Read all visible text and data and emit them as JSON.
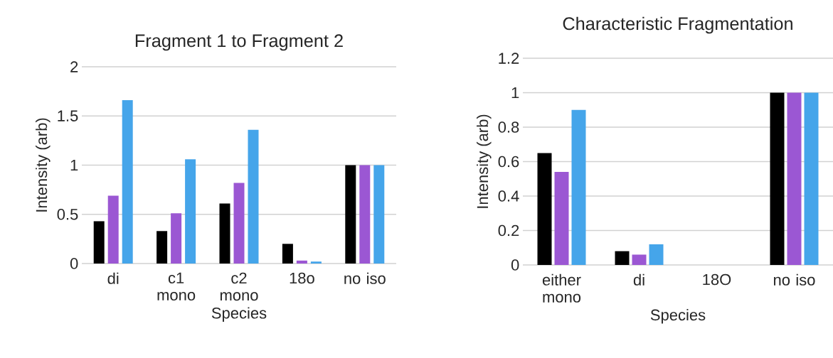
{
  "chart_data": [
    {
      "type": "bar",
      "title": "Fragment 1 to Fragment 2",
      "xlabel": "Species",
      "ylabel": "Intensity (arb)",
      "categories": [
        "di",
        "c1 mono",
        "c2 mono",
        "18o",
        "no iso"
      ],
      "series": [
        {
          "color": "#000000",
          "values": [
            0.43,
            0.33,
            0.61,
            0.2,
            1.0
          ]
        },
        {
          "color": "#9b57d3",
          "values": [
            0.69,
            0.51,
            0.82,
            0.03,
            1.0
          ]
        },
        {
          "color": "#45a5ea",
          "values": [
            1.66,
            1.06,
            1.36,
            0.02,
            1.0
          ]
        }
      ],
      "ylim": [
        0,
        2
      ],
      "yticks": [
        0,
        0.5,
        1,
        1.5,
        2
      ],
      "grid": "y"
    },
    {
      "type": "bar",
      "title": "Characteristic Fragmentation",
      "xlabel": "Species",
      "ylabel": "Intensity (arb)",
      "categories": [
        "either mono",
        "di",
        "18O",
        "no iso"
      ],
      "series": [
        {
          "color": "#000000",
          "values": [
            0.65,
            0.08,
            0,
            1.0
          ]
        },
        {
          "color": "#9b57d3",
          "values": [
            0.54,
            0.06,
            0,
            1.0
          ]
        },
        {
          "color": "#45a5ea",
          "values": [
            0.9,
            0.12,
            0,
            1.0
          ]
        }
      ],
      "ylim": [
        0,
        1.2
      ],
      "yticks": [
        0,
        0.2,
        0.4,
        0.6,
        0.8,
        1,
        1.2
      ],
      "grid": "y"
    }
  ]
}
